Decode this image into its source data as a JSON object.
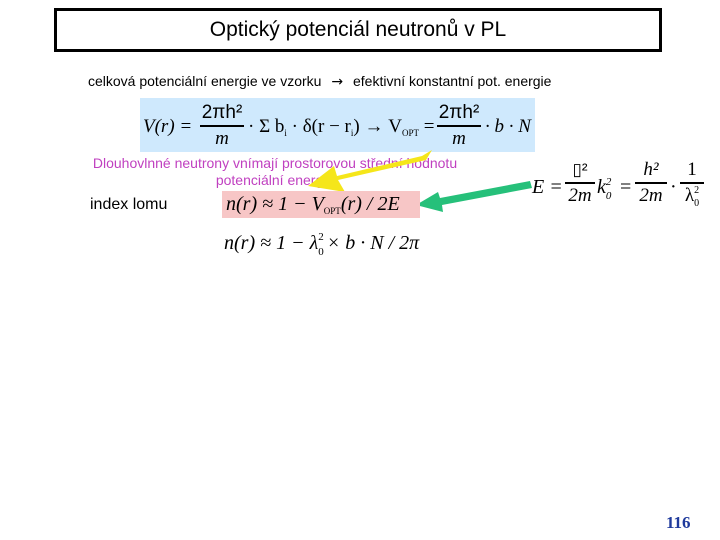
{
  "slide": {
    "title": "Optický potenciál neutronů v PL",
    "intro_left": "celková potenciální energie ve vzorku",
    "intro_arrow": "→",
    "intro_right": "efektivní konstantní pot. energie",
    "note_line1": "Dlouhovlnné neutrony vnímají prostorovou střední hodnotu",
    "note_line2": "potenciální energie",
    "index_label": "index lomu",
    "page_number": "116"
  },
  "formulas": {
    "potential_lhs": "V(r) =",
    "frac_num": "2πh²",
    "frac_den": "m",
    "sum_part": "· Σ b",
    "sum_sub": "i",
    "delta_part": "· δ(r − r",
    "delta_sub": "i",
    "delta_close": ") → V",
    "opt_sub": "OPT",
    "equals": " =",
    "tail": "· b · N",
    "n_eq": "n(r) ≈ 1 − V",
    "n_eq_sub": "OPT",
    "n_eq_tail": "(r) / 2E",
    "n_approx": "n(r) ≈ 1 − λ",
    "n_approx_sub": "0",
    "n_approx_sup": "2",
    "n_approx_tail": "× b · N / 2π",
    "energy_lhs": "E =",
    "energy_frac1_num": "▯²",
    "energy_frac1_den": "2m",
    "energy_k": "k",
    "energy_k_sub": "0",
    "energy_k_sup": "2",
    "energy_eq2": "=",
    "energy_frac2_num": "h²",
    "energy_frac2_den": "2m",
    "energy_dot": "·",
    "energy_frac3_num": "1",
    "energy_frac3_den": "λ",
    "energy_frac3_den_sub": "0",
    "energy_frac3_den_sup": "2"
  },
  "colors": {
    "formula_box": "#cfe9fd",
    "n_box": "#f7c6c6",
    "note_text": "#c040c0",
    "yellow_arrow": "#f5e61a",
    "green_arrow": "#26c07a",
    "page_number": "#1f3a9c"
  }
}
